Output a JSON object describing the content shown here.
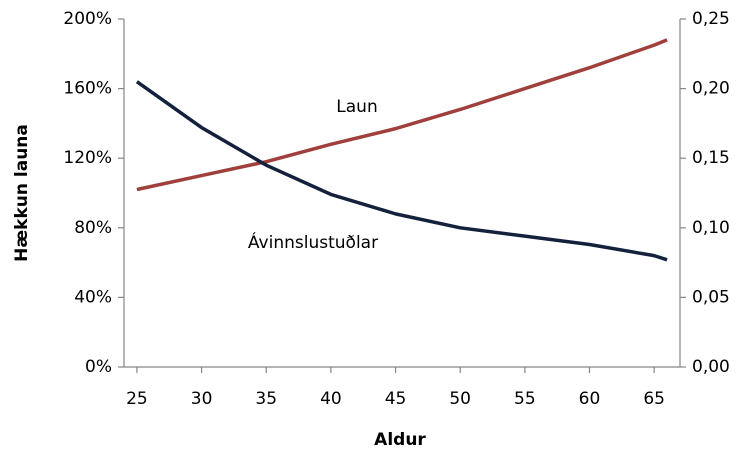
{
  "chart_data": {
    "type": "line",
    "x": [
      25,
      30,
      35,
      40,
      45,
      50,
      55,
      60,
      65,
      66
    ],
    "series": [
      {
        "name": "Laun",
        "color": "#a0403c",
        "axis": "y",
        "values": [
          102,
          110,
          118,
          128,
          137,
          148,
          160,
          172,
          185,
          188
        ]
      },
      {
        "name": "Ávinnslustuðlar",
        "color": "#14213d",
        "axis": "y2",
        "values": [
          0.205,
          0.172,
          0.145,
          0.124,
          0.11,
          0.1,
          0.094,
          0.088,
          0.08,
          0.077
        ]
      }
    ],
    "xlabel": "Aldur",
    "ylabel": "Hækkun launa",
    "xlim": [
      24,
      67
    ],
    "xticks": [
      25,
      30,
      35,
      40,
      45,
      50,
      55,
      60,
      65
    ],
    "ylim": [
      0,
      200
    ],
    "yticks": [
      {
        "value": 0,
        "label": "0%"
      },
      {
        "value": 40,
        "label": "40%"
      },
      {
        "value": 80,
        "label": "80%"
      },
      {
        "value": 120,
        "label": "120%"
      },
      {
        "value": 160,
        "label": "160%"
      },
      {
        "value": 200,
        "label": "200%"
      }
    ],
    "y2lim": [
      0,
      0.25
    ],
    "y2ticks": [
      {
        "value": 0,
        "label": "0,00"
      },
      {
        "value": 0.05,
        "label": "0,05"
      },
      {
        "value": 0.1,
        "label": "0,10"
      },
      {
        "value": 0.15,
        "label": "0,15"
      },
      {
        "value": 0.2,
        "label": "0,20"
      },
      {
        "value": 0.25,
        "label": "0,25"
      }
    ],
    "legend": false,
    "grid": false
  }
}
